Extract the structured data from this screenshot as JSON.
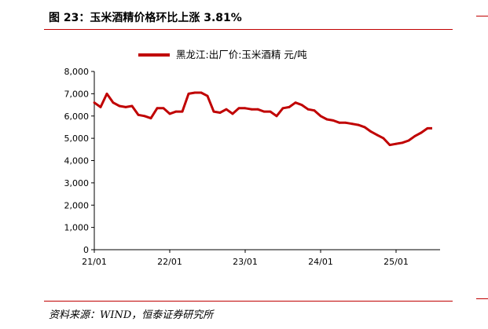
{
  "header": {
    "title": "图 23：玉米酒精价格环比上涨 3.81%",
    "accent_color": "#c00000"
  },
  "footer": {
    "source": "资料来源：WIND，恒泰证券研究所"
  },
  "chart_data": {
    "type": "line",
    "x_ticks": [
      "21/01",
      "22/01",
      "23/01",
      "24/01",
      "25/01"
    ],
    "ylim": [
      0,
      8000
    ],
    "y_ticks": [
      "0",
      "1,000",
      "2,000",
      "3,000",
      "4,000",
      "5,000",
      "6,000",
      "7,000",
      "8,000"
    ],
    "legend_position": "top-center",
    "grid": false,
    "series": [
      {
        "name": "黑龙江:出厂价:玉米酒精 元/吨",
        "color": "#c00000",
        "x": [
          "2021-01",
          "2021-02",
          "2021-03",
          "2021-04",
          "2021-05",
          "2021-06",
          "2021-07",
          "2021-08",
          "2021-09",
          "2021-10",
          "2021-11",
          "2021-12",
          "2022-01",
          "2022-02",
          "2022-03",
          "2022-04",
          "2022-05",
          "2022-06",
          "2022-07",
          "2022-08",
          "2022-09",
          "2022-10",
          "2022-11",
          "2022-12",
          "2023-01",
          "2023-02",
          "2023-03",
          "2023-04",
          "2023-05",
          "2023-06",
          "2023-07",
          "2023-08",
          "2023-09",
          "2023-10",
          "2023-11",
          "2023-12",
          "2024-01",
          "2024-02",
          "2024-03",
          "2024-04",
          "2024-05",
          "2024-06",
          "2024-07",
          "2024-08",
          "2024-09",
          "2024-10",
          "2024-11",
          "2024-12",
          "2025-01",
          "2025-02",
          "2025-03",
          "2025-04",
          "2025-05",
          "2025-06"
        ],
        "values": [
          6600,
          6400,
          7000,
          6600,
          6450,
          6400,
          6450,
          6050,
          6000,
          5900,
          6350,
          6350,
          6100,
          6200,
          6200,
          7000,
          7050,
          7050,
          6900,
          6200,
          6150,
          6300,
          6100,
          6350,
          6350,
          6300,
          6300,
          6200,
          6200,
          6000,
          6350,
          6400,
          6600,
          6500,
          6300,
          6250,
          6000,
          5850,
          5800,
          5700,
          5700,
          5650,
          5600,
          5500,
          5300,
          5150,
          5000,
          4700,
          4750,
          4800,
          4900,
          5100,
          5250,
          5450
        ]
      }
    ]
  }
}
